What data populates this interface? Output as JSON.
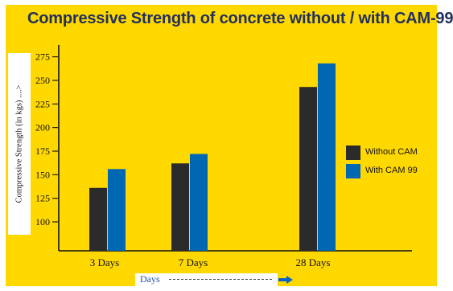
{
  "chart_data": {
    "type": "bar",
    "title": "Compressive Strength of concrete without / with CAM-99",
    "xlabel": "Days",
    "ylabel": "Compressive Strength (in kgs) ....>",
    "categories": [
      "3 Days",
      "7 Days",
      "28 Days"
    ],
    "y_ticks": [
      100,
      125,
      150,
      175,
      200,
      225,
      250,
      275
    ],
    "ylim": [
      75,
      285
    ],
    "grid": false,
    "legend_position": "right",
    "series": [
      {
        "name": "Without CAM",
        "color": "#2b2b2b",
        "values": [
          136,
          162,
          243
        ]
      },
      {
        "name": "With CAM 99",
        "color": "#0067b3",
        "values": [
          156,
          172,
          268
        ]
      }
    ]
  },
  "colors": {
    "background": "#ffd800",
    "title": "#22305f",
    "axis": "#111111",
    "arrow": "#0b63c7"
  },
  "icons": {
    "days_arrow": "right-arrow-icon"
  }
}
